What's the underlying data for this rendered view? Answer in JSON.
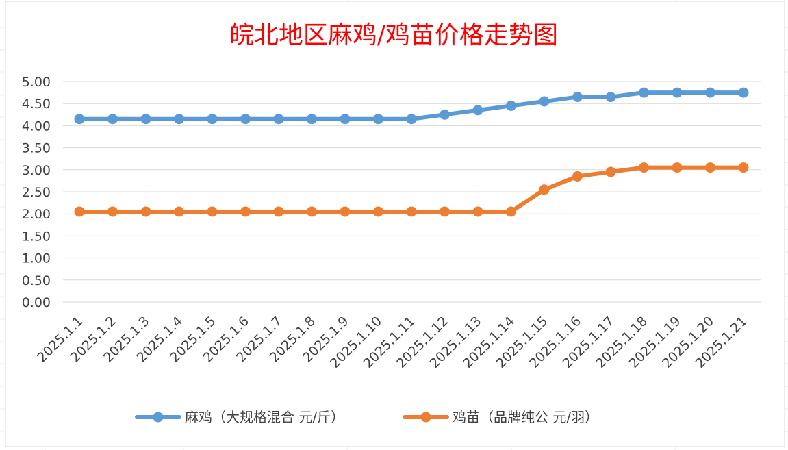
{
  "chart_data": {
    "type": "line",
    "title": "皖北地区麻鸡/鸡苗价格走势图",
    "title_color": "#ff0000",
    "categories": [
      "2025.1.1",
      "2025.1.2",
      "2025.1.3",
      "2025.1.4",
      "2025.1.5",
      "2025.1.6",
      "2025.1.7",
      "2025.1.8",
      "2025.1.9",
      "2025.1.10",
      "2025.1.11",
      "2025.1.12",
      "2025.1.13",
      "2025.1.14",
      "2025.1.15",
      "2025.1.16",
      "2025.1.17",
      "2025.1.18",
      "2025.1.19",
      "2025.1.20",
      "2025.1.21"
    ],
    "series": [
      {
        "name": "麻鸡（大规格混合 元/斤）",
        "color": "#5b9bd5",
        "values": [
          4.15,
          4.15,
          4.15,
          4.15,
          4.15,
          4.15,
          4.15,
          4.15,
          4.15,
          4.15,
          4.15,
          4.25,
          4.35,
          4.45,
          4.55,
          4.65,
          4.65,
          4.75,
          4.75,
          4.75,
          4.75
        ]
      },
      {
        "name": "鸡苗（品牌纯公 元/羽）",
        "color": "#ed7d31",
        "values": [
          2.05,
          2.05,
          2.05,
          2.05,
          2.05,
          2.05,
          2.05,
          2.05,
          2.05,
          2.05,
          2.05,
          2.05,
          2.05,
          2.05,
          2.55,
          2.85,
          2.95,
          3.05,
          3.05,
          3.05,
          3.05
        ]
      }
    ],
    "yticks": [
      "0.00",
      "0.50",
      "1.00",
      "1.50",
      "2.00",
      "2.50",
      "3.00",
      "3.50",
      "4.00",
      "4.50",
      "5.00"
    ],
    "ylim": [
      0,
      5
    ],
    "grid": true,
    "legend_position": "bottom"
  }
}
